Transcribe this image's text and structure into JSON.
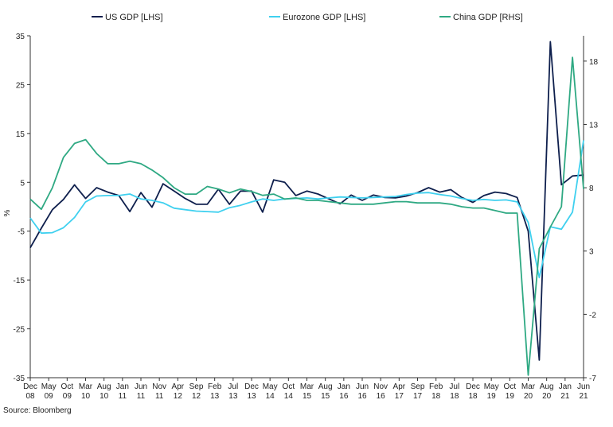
{
  "chart_data": {
    "type": "line",
    "title": "",
    "source": "Source: Bloomberg",
    "ylabel_left": "%",
    "ylabel_right": "",
    "left_axis": {
      "ylim": [
        -35,
        35
      ],
      "ticks": [
        35,
        25,
        15,
        5,
        -5,
        -15,
        -25,
        -35
      ]
    },
    "right_axis": {
      "ylim": [
        -7,
        20
      ],
      "ticks": [
        18,
        13,
        8,
        3,
        -2,
        -7
      ]
    },
    "x_ticks": [
      {
        "m": "Dec",
        "y": "08"
      },
      {
        "m": "May",
        "y": "09"
      },
      {
        "m": "Oct",
        "y": "09"
      },
      {
        "m": "Mar",
        "y": "10"
      },
      {
        "m": "Aug",
        "y": "10"
      },
      {
        "m": "Jan",
        "y": "11"
      },
      {
        "m": "Jun",
        "y": "11"
      },
      {
        "m": "Nov",
        "y": "11"
      },
      {
        "m": "Apr",
        "y": "12"
      },
      {
        "m": "Sep",
        "y": "12"
      },
      {
        "m": "Feb",
        "y": "13"
      },
      {
        "m": "Jul",
        "y": "13"
      },
      {
        "m": "Dec",
        "y": "13"
      },
      {
        "m": "May",
        "y": "14"
      },
      {
        "m": "Oct",
        "y": "14"
      },
      {
        "m": "Mar",
        "y": "15"
      },
      {
        "m": "Aug",
        "y": "15"
      },
      {
        "m": "Jan",
        "y": "16"
      },
      {
        "m": "Jun",
        "y": "16"
      },
      {
        "m": "Nov",
        "y": "16"
      },
      {
        "m": "Apr",
        "y": "17"
      },
      {
        "m": "Sep",
        "y": "17"
      },
      {
        "m": "Feb",
        "y": "18"
      },
      {
        "m": "Jul",
        "y": "18"
      },
      {
        "m": "Dec",
        "y": "18"
      },
      {
        "m": "May",
        "y": "19"
      },
      {
        "m": "Oct",
        "y": "19"
      },
      {
        "m": "Mar",
        "y": "20"
      },
      {
        "m": "Aug",
        "y": "20"
      },
      {
        "m": "Jan",
        "y": "21"
      },
      {
        "m": "Jun",
        "y": "21"
      }
    ],
    "series": [
      {
        "name": "US GDP [LHS]",
        "color": "#0e1f4d",
        "axis": "left",
        "points": [
          [
            "2008-12",
            -8.4
          ],
          [
            "2009-03",
            -4.4
          ],
          [
            "2009-06",
            -0.6
          ],
          [
            "2009-09",
            1.5
          ],
          [
            "2009-12",
            4.5
          ],
          [
            "2010-03",
            1.7
          ],
          [
            "2010-06",
            3.9
          ],
          [
            "2010-09",
            3.0
          ],
          [
            "2010-12",
            2.3
          ],
          [
            "2011-03",
            -1.0
          ],
          [
            "2011-06",
            2.9
          ],
          [
            "2011-09",
            -0.1
          ],
          [
            "2011-12",
            4.7
          ],
          [
            "2012-03",
            3.2
          ],
          [
            "2012-06",
            1.7
          ],
          [
            "2012-09",
            0.5
          ],
          [
            "2012-12",
            0.5
          ],
          [
            "2013-03",
            3.6
          ],
          [
            "2013-06",
            0.5
          ],
          [
            "2013-09",
            3.2
          ],
          [
            "2013-12",
            3.2
          ],
          [
            "2014-03",
            -1.1
          ],
          [
            "2014-06",
            5.5
          ],
          [
            "2014-09",
            5.0
          ],
          [
            "2014-12",
            2.3
          ],
          [
            "2015-03",
            3.2
          ],
          [
            "2015-06",
            2.6
          ],
          [
            "2015-09",
            1.6
          ],
          [
            "2015-12",
            0.6
          ],
          [
            "2016-03",
            2.4
          ],
          [
            "2016-06",
            1.3
          ],
          [
            "2016-09",
            2.4
          ],
          [
            "2016-12",
            1.9
          ],
          [
            "2017-03",
            1.8
          ],
          [
            "2017-06",
            2.2
          ],
          [
            "2017-09",
            2.9
          ],
          [
            "2017-12",
            3.9
          ],
          [
            "2018-03",
            3.0
          ],
          [
            "2018-06",
            3.5
          ],
          [
            "2018-09",
            1.9
          ],
          [
            "2018-12",
            0.9
          ],
          [
            "2019-03",
            2.3
          ],
          [
            "2019-06",
            3.0
          ],
          [
            "2019-09",
            2.7
          ],
          [
            "2019-12",
            1.9
          ],
          [
            "2020-03",
            -5.0
          ],
          [
            "2020-06",
            -31.4
          ],
          [
            "2020-09",
            33.8
          ],
          [
            "2020-12",
            4.5
          ],
          [
            "2021-03",
            6.3
          ],
          [
            "2021-06",
            6.5
          ]
        ]
      },
      {
        "name": "Eurozone GDP [LHS]",
        "color": "#3fd0ef",
        "axis": "left",
        "points": [
          [
            "2008-12",
            -2.3
          ],
          [
            "2009-03",
            -5.4
          ],
          [
            "2009-06",
            -5.3
          ],
          [
            "2009-09",
            -4.3
          ],
          [
            "2009-12",
            -2.2
          ],
          [
            "2010-03",
            1.0
          ],
          [
            "2010-06",
            2.2
          ],
          [
            "2010-09",
            2.3
          ],
          [
            "2010-12",
            2.3
          ],
          [
            "2011-03",
            2.6
          ],
          [
            "2011-06",
            1.6
          ],
          [
            "2011-09",
            1.3
          ],
          [
            "2011-12",
            0.8
          ],
          [
            "2012-03",
            -0.3
          ],
          [
            "2012-06",
            -0.6
          ],
          [
            "2012-09",
            -0.9
          ],
          [
            "2012-12",
            -1.0
          ],
          [
            "2013-03",
            -1.1
          ],
          [
            "2013-06",
            -0.2
          ],
          [
            "2013-09",
            0.3
          ],
          [
            "2013-12",
            1.0
          ],
          [
            "2014-03",
            1.6
          ],
          [
            "2014-06",
            1.3
          ],
          [
            "2014-09",
            1.6
          ],
          [
            "2014-12",
            1.7
          ],
          [
            "2015-03",
            1.8
          ],
          [
            "2015-06",
            1.6
          ],
          [
            "2015-09",
            1.8
          ],
          [
            "2015-12",
            2.0
          ],
          [
            "2016-03",
            1.9
          ],
          [
            "2016-06",
            1.8
          ],
          [
            "2016-09",
            1.9
          ],
          [
            "2016-12",
            2.0
          ],
          [
            "2017-03",
            2.1
          ],
          [
            "2017-06",
            2.5
          ],
          [
            "2017-09",
            2.8
          ],
          [
            "2017-12",
            2.9
          ],
          [
            "2018-03",
            2.5
          ],
          [
            "2018-06",
            2.2
          ],
          [
            "2018-09",
            1.7
          ],
          [
            "2018-12",
            1.3
          ],
          [
            "2019-03",
            1.5
          ],
          [
            "2019-06",
            1.3
          ],
          [
            "2019-09",
            1.4
          ],
          [
            "2019-12",
            1.0
          ],
          [
            "2020-03",
            -3.2
          ],
          [
            "2020-06",
            -14.5
          ],
          [
            "2020-09",
            -4.1
          ],
          [
            "2020-12",
            -4.6
          ],
          [
            "2021-03",
            -1.1
          ],
          [
            "2021-06",
            13.6
          ]
        ]
      },
      {
        "name": "China GDP [RHS]",
        "color": "#2fa983",
        "axis": "right",
        "points": [
          [
            "2008-12",
            7.1
          ],
          [
            "2009-03",
            6.3
          ],
          [
            "2009-06",
            8.0
          ],
          [
            "2009-09",
            10.4
          ],
          [
            "2009-12",
            11.5
          ],
          [
            "2010-03",
            11.8
          ],
          [
            "2010-06",
            10.7
          ],
          [
            "2010-09",
            9.9
          ],
          [
            "2010-12",
            9.9
          ],
          [
            "2011-03",
            10.1
          ],
          [
            "2011-06",
            9.9
          ],
          [
            "2011-09",
            9.4
          ],
          [
            "2011-12",
            8.8
          ],
          [
            "2012-03",
            8.0
          ],
          [
            "2012-06",
            7.5
          ],
          [
            "2012-09",
            7.5
          ],
          [
            "2012-12",
            8.1
          ],
          [
            "2013-03",
            7.9
          ],
          [
            "2013-06",
            7.6
          ],
          [
            "2013-09",
            7.9
          ],
          [
            "2013-12",
            7.7
          ],
          [
            "2014-03",
            7.4
          ],
          [
            "2014-06",
            7.5
          ],
          [
            "2014-09",
            7.1
          ],
          [
            "2014-12",
            7.2
          ],
          [
            "2015-03",
            7.0
          ],
          [
            "2015-06",
            7.0
          ],
          [
            "2015-09",
            6.9
          ],
          [
            "2015-12",
            6.8
          ],
          [
            "2016-03",
            6.7
          ],
          [
            "2016-06",
            6.7
          ],
          [
            "2016-09",
            6.7
          ],
          [
            "2016-12",
            6.8
          ],
          [
            "2017-03",
            6.9
          ],
          [
            "2017-06",
            6.9
          ],
          [
            "2017-09",
            6.8
          ],
          [
            "2017-12",
            6.8
          ],
          [
            "2018-03",
            6.8
          ],
          [
            "2018-06",
            6.7
          ],
          [
            "2018-09",
            6.5
          ],
          [
            "2018-12",
            6.4
          ],
          [
            "2019-03",
            6.4
          ],
          [
            "2019-06",
            6.2
          ],
          [
            "2019-09",
            6.0
          ],
          [
            "2019-12",
            6.0
          ],
          [
            "2020-03",
            -6.8
          ],
          [
            "2020-06",
            3.2
          ],
          [
            "2020-09",
            4.9
          ],
          [
            "2020-12",
            6.5
          ],
          [
            "2021-03",
            18.3
          ],
          [
            "2021-06",
            7.9
          ]
        ]
      }
    ]
  }
}
